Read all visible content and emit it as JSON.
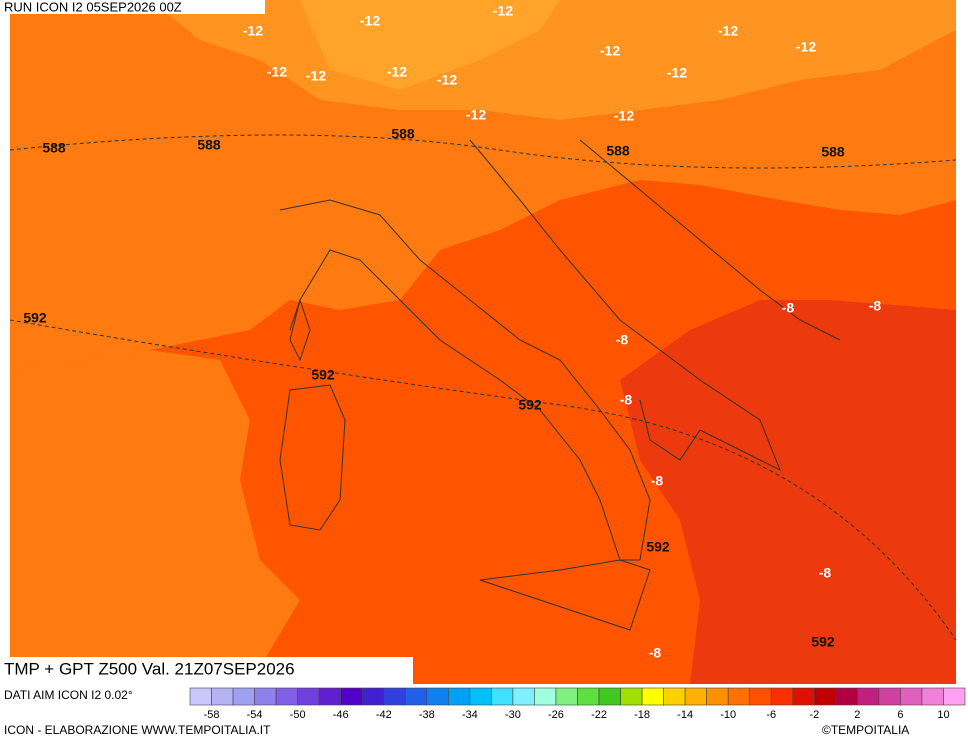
{
  "header": {
    "run": "RUN ICON I2 05SEP2026 00Z"
  },
  "map": {
    "labels": [
      "-12",
      "-12",
      "-12",
      "-12",
      "-12",
      "-12",
      "-12",
      "-12",
      "-12",
      "-12",
      "-12",
      "-12",
      "-12",
      "588",
      "588",
      "588",
      "588",
      "588",
      "592",
      "592",
      "592",
      "592",
      "592",
      "-8",
      "-8",
      "-8",
      "-8",
      "-8",
      "-8",
      "-8"
    ]
  },
  "footer": {
    "title": "TMP + GPT Z500 Val. 21Z07SEP2026",
    "source": "DATI AIM ICON I2 0.02°",
    "credit": "ICON - ELABORAZIONE WWW.TEMPOITALIA.IT",
    "copyright": "©TEMPOITALIA"
  },
  "legend": {
    "ticks": [
      -58,
      -54,
      -50,
      -46,
      -42,
      -38,
      -34,
      -30,
      -26,
      -22,
      -18,
      -14,
      -10,
      -6,
      -2,
      2,
      6,
      10
    ],
    "colors": [
      "#c8c8ff",
      "#b4b4f5",
      "#a0a0f0",
      "#9080eb",
      "#8060e6",
      "#7040dc",
      "#6020d2",
      "#5000c8",
      "#4020d0",
      "#3040dc",
      "#2060e6",
      "#1080f0",
      "#00a0f5",
      "#00c0fa",
      "#40e0ff",
      "#80f0ff",
      "#a0ffe0",
      "#80f080",
      "#60e040",
      "#40c820",
      "#a0e000",
      "#ffff00",
      "#ffd000",
      "#ffb000",
      "#ff9000",
      "#ff7000",
      "#ff5000",
      "#ff3000",
      "#e01000",
      "#c00000",
      "#b00040",
      "#c02080",
      "#d040a0",
      "#e060c0",
      "#f080d8",
      "#ffa0f0"
    ]
  }
}
